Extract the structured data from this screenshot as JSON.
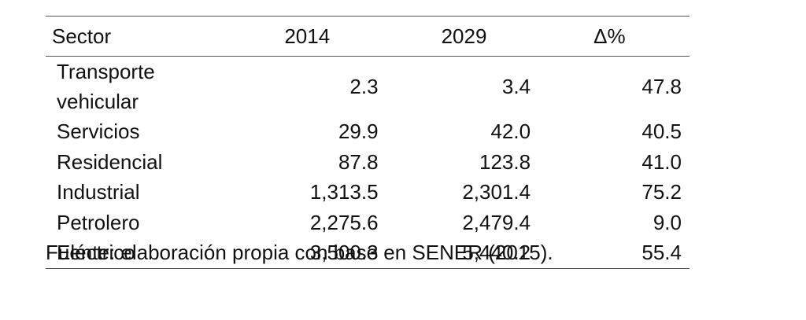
{
  "table": {
    "headers": [
      "Sector",
      "2014",
      "2029",
      "Δ%"
    ],
    "rows": [
      [
        "Transporte vehicular",
        "2.3",
        "3.4",
        "47.8"
      ],
      [
        "Servicios",
        "29.9",
        "42.0",
        "40.5"
      ],
      [
        "Residencial",
        "87.8",
        "123.8",
        "41.0"
      ],
      [
        "Industrial",
        "1,313.5",
        "2,301.4",
        "75.2"
      ],
      [
        "Petrolero",
        "2,275.6",
        "2,479.4",
        "9.0"
      ],
      [
        "Eléctrico",
        "3,500.3",
        "5,440.2",
        "55.4"
      ]
    ]
  },
  "source": "Fuente: elaboración propia con base en SENER (2015)."
}
